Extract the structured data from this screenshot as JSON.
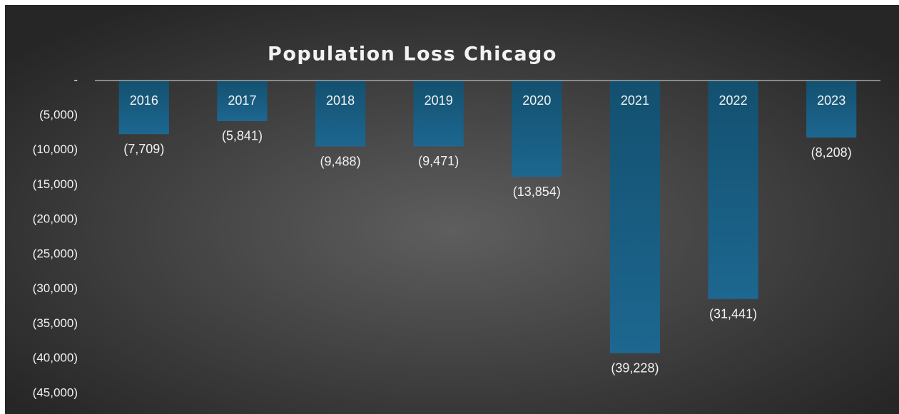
{
  "chart_data": {
    "type": "bar",
    "title": "Population Loss Chicago",
    "categories": [
      "2016",
      "2017",
      "2018",
      "2019",
      "2020",
      "2021",
      "2022",
      "2023"
    ],
    "values": [
      -7709,
      -5841,
      -9488,
      -9471,
      -13854,
      -39228,
      -31441,
      -8208
    ],
    "value_labels": [
      "(7,709)",
      "(5,841)",
      "(9,488)",
      "(9,471)",
      "(13,854)",
      "(39,228)",
      "(31,441)",
      "(8,208)"
    ],
    "color": "#1d6790",
    "ylim": [
      -45000,
      0
    ],
    "yticks": [
      {
        "value": 0,
        "label": "-"
      },
      {
        "value": -5000,
        "label": "(5,000)"
      },
      {
        "value": -10000,
        "label": "(10,000)"
      },
      {
        "value": -15000,
        "label": "(15,000)"
      },
      {
        "value": -20000,
        "label": "(20,000)"
      },
      {
        "value": -25000,
        "label": "(25,000)"
      },
      {
        "value": -30000,
        "label": "(30,000)"
      },
      {
        "value": -35000,
        "label": "(35,000)"
      },
      {
        "value": -40000,
        "label": "(40,000)"
      },
      {
        "value": -45000,
        "label": "(45,000)"
      }
    ],
    "grid": false
  }
}
